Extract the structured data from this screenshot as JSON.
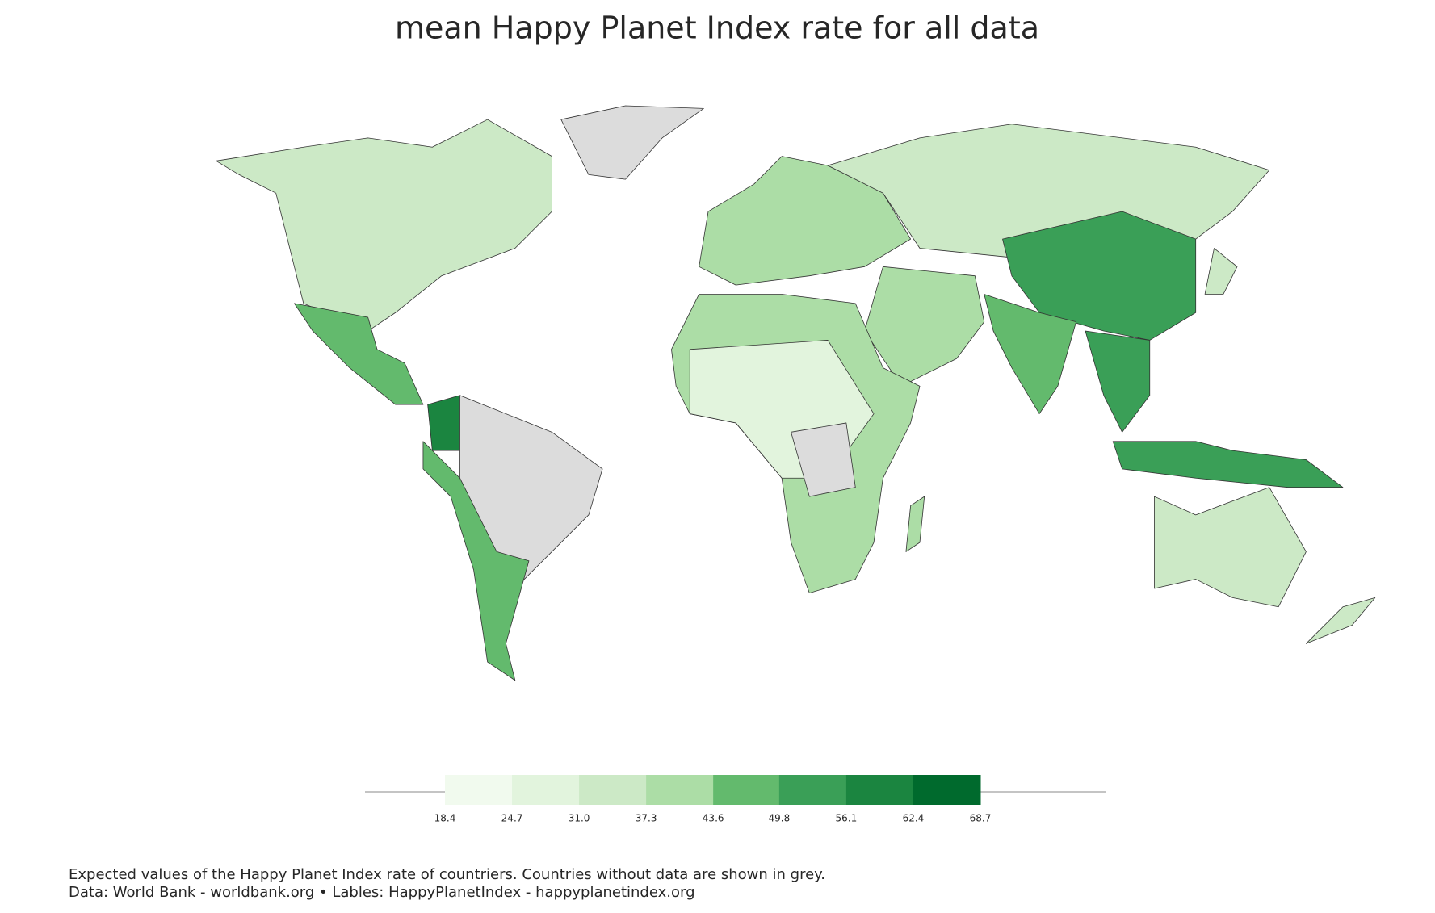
{
  "chart_data": {
    "type": "choropleth",
    "title": "mean Happy Planet Index rate for all data",
    "colorbar": {
      "ticks": [
        18.4,
        24.7,
        {
          "value": 31,
          "label": "31.0"
        },
        37.3,
        43.6,
        49.8,
        56.1,
        62.4,
        68.7
      ],
      "colors": [
        "#f1faee",
        "#e2f4dd",
        "#cce9c6",
        "#acdda6",
        "#63ba6d",
        "#3a9f57",
        "#1b8540",
        "#006a2d"
      ]
    },
    "caption": [
      "Expected values of the Happy Planet Index rate of countriers. Countries without data are shown in grey.",
      "Data: World Bank - worldbank.org • Lables: HappyPlanetIndex - happyplanetindex.org"
    ]
  }
}
